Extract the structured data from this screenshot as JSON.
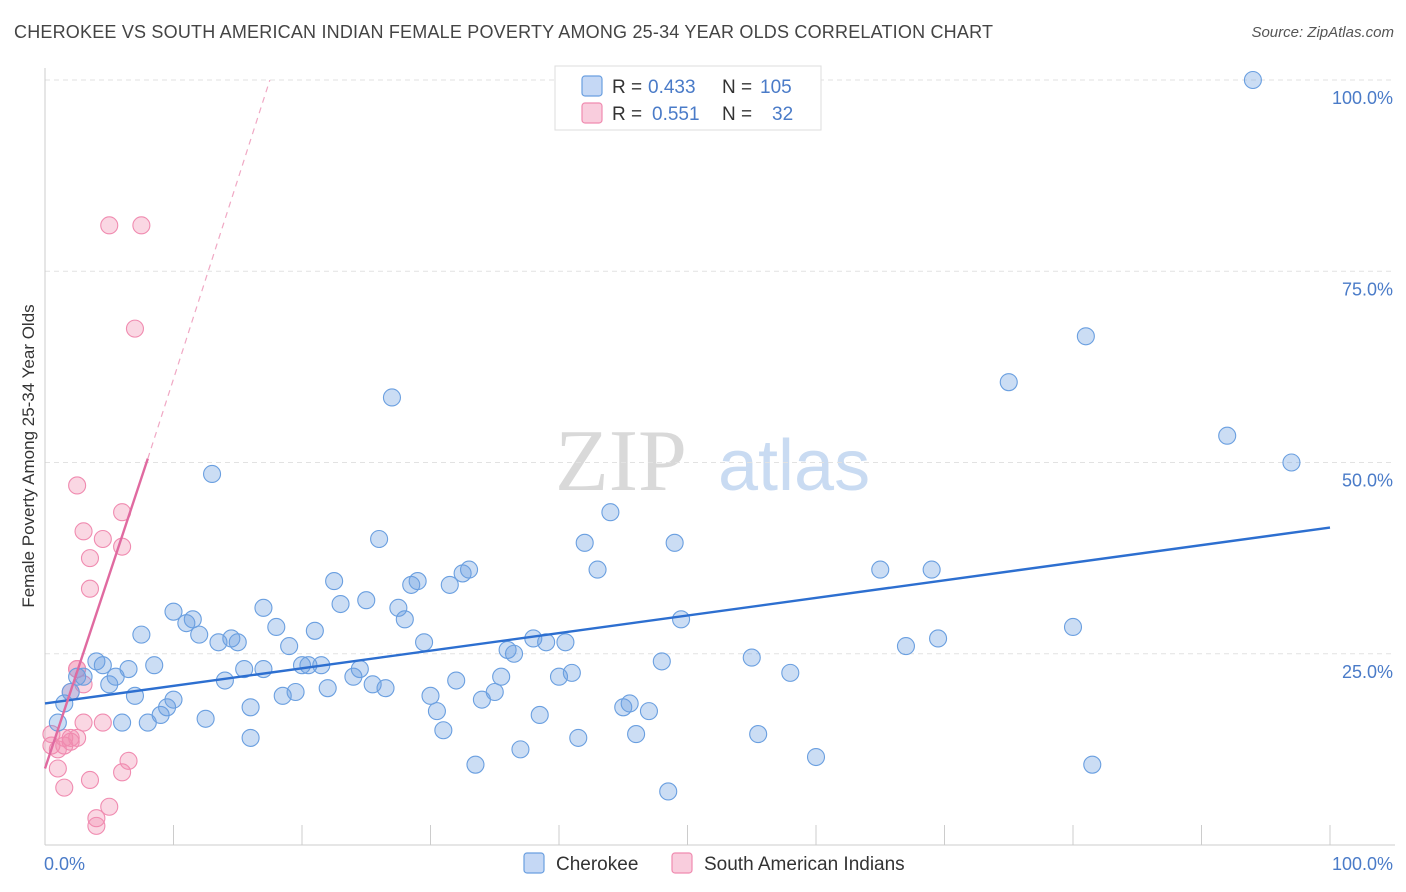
{
  "title": "CHEROKEE VS SOUTH AMERICAN INDIAN FEMALE POVERTY AMONG 25-34 YEAR OLDS CORRELATION CHART",
  "source": "Source: ZipAtlas.com",
  "watermark": {
    "zip": "ZIP",
    "atlas": "atlas"
  },
  "colors": {
    "cherokee": "#6a9fe0",
    "cherokee_line": "#2d6fd0",
    "sa": "#f08bb0",
    "sa_line": "#e06aa0",
    "label": "#4a7bc8"
  },
  "chart_data": {
    "type": "scatter",
    "title": "CHEROKEE VS SOUTH AMERICAN INDIAN FEMALE POVERTY AMONG 25-34 YEAR OLDS CORRELATION CHART",
    "xlabel": "",
    "ylabel": "Female Poverty Among 25-34 Year Olds",
    "xlim": [
      0,
      100
    ],
    "ylim": [
      0,
      100
    ],
    "x_tick_labels": [
      "0.0%",
      "100.0%"
    ],
    "y_ticks": [
      25,
      50,
      75,
      100
    ],
    "y_tick_labels": [
      "25.0%",
      "50.0%",
      "75.0%",
      "100.0%"
    ],
    "legend_stats": [
      {
        "r_label": "R =",
        "r": "0.433",
        "n_label": "N =",
        "n": "105"
      },
      {
        "r_label": "R =",
        "r": "0.551",
        "n_label": "N =",
        "n": "32"
      }
    ],
    "series": [
      {
        "name": "Cherokee",
        "trend": {
          "x0": 0,
          "y0": 18.5,
          "x1": 100,
          "y1": 41.5
        },
        "points": [
          [
            1,
            16
          ],
          [
            1.5,
            18.5
          ],
          [
            2,
            20
          ],
          [
            2.5,
            22
          ],
          [
            3,
            22
          ],
          [
            4,
            24
          ],
          [
            4.5,
            23.5
          ],
          [
            5,
            21
          ],
          [
            5.5,
            22
          ],
          [
            6,
            16
          ],
          [
            6.5,
            23
          ],
          [
            7,
            19.5
          ],
          [
            7.5,
            27.5
          ],
          [
            8,
            16
          ],
          [
            8.5,
            23.5
          ],
          [
            9,
            17
          ],
          [
            9.5,
            18
          ],
          [
            10,
            19
          ],
          [
            10,
            30.5
          ],
          [
            11,
            29
          ],
          [
            11.5,
            29.5
          ],
          [
            12,
            27.5
          ],
          [
            12.5,
            16.5
          ],
          [
            13,
            48.5
          ],
          [
            13.5,
            26.5
          ],
          [
            14,
            21.5
          ],
          [
            14.5,
            27
          ],
          [
            15,
            26.5
          ],
          [
            15.5,
            23
          ],
          [
            16,
            18
          ],
          [
            16,
            14
          ],
          [
            17,
            23
          ],
          [
            17,
            31
          ],
          [
            18,
            28.5
          ],
          [
            18.5,
            19.5
          ],
          [
            19,
            26
          ],
          [
            19.5,
            20
          ],
          [
            20,
            23.5
          ],
          [
            20.5,
            23.5
          ],
          [
            21,
            28
          ],
          [
            21.5,
            23.5
          ],
          [
            22,
            20.5
          ],
          [
            22.5,
            34.5
          ],
          [
            23,
            31.5
          ],
          [
            24,
            22
          ],
          [
            24.5,
            23
          ],
          [
            25,
            32
          ],
          [
            25.5,
            21
          ],
          [
            26,
            40
          ],
          [
            26.5,
            20.5
          ],
          [
            27,
            58.5
          ],
          [
            27.5,
            31
          ],
          [
            28,
            29.5
          ],
          [
            28.5,
            34
          ],
          [
            29,
            34.5
          ],
          [
            29.5,
            26.5
          ],
          [
            30,
            19.5
          ],
          [
            30.5,
            17.5
          ],
          [
            31,
            15
          ],
          [
            31.5,
            34
          ],
          [
            32,
            21.5
          ],
          [
            32.5,
            35.5
          ],
          [
            33,
            36
          ],
          [
            33.5,
            10.5
          ],
          [
            34,
            19
          ],
          [
            35,
            20
          ],
          [
            35.5,
            22
          ],
          [
            36,
            25.5
          ],
          [
            36.5,
            25
          ],
          [
            37,
            12.5
          ],
          [
            38,
            27
          ],
          [
            38.5,
            17
          ],
          [
            39,
            26.5
          ],
          [
            40,
            22
          ],
          [
            40.5,
            26.5
          ],
          [
            41,
            22.5
          ],
          [
            41.5,
            14
          ],
          [
            42,
            39.5
          ],
          [
            43,
            36
          ],
          [
            44,
            43.5
          ],
          [
            45,
            18
          ],
          [
            45.5,
            18.5
          ],
          [
            46,
            14.5
          ],
          [
            47,
            17.5
          ],
          [
            48,
            24
          ],
          [
            48.5,
            7
          ],
          [
            49,
            39.5
          ],
          [
            49.5,
            29.5
          ],
          [
            55,
            24.5
          ],
          [
            55.5,
            14.5
          ],
          [
            58,
            22.5
          ],
          [
            60,
            11.5
          ],
          [
            65,
            36
          ],
          [
            67,
            26
          ],
          [
            69,
            36
          ],
          [
            69.5,
            27
          ],
          [
            75,
            60.5
          ],
          [
            80,
            28.5
          ],
          [
            81,
            66.5
          ],
          [
            81.5,
            10.5
          ],
          [
            92,
            53.5
          ],
          [
            94,
            100
          ],
          [
            97,
            50
          ]
        ]
      },
      {
        "name": "South American Indians",
        "trend": {
          "x0": 0,
          "y0": 10,
          "x1": 8,
          "y1": 50.5
        },
        "trend_dashed": {
          "x0": 8,
          "y0": 50.5,
          "x1": 17.5,
          "y1": 100
        },
        "points": [
          [
            0.5,
            13
          ],
          [
            0.5,
            14.5
          ],
          [
            1,
            12.5
          ],
          [
            1,
            10
          ],
          [
            1.5,
            7.5
          ],
          [
            1.5,
            13
          ],
          [
            1.5,
            14
          ],
          [
            2,
            20
          ],
          [
            2,
            14
          ],
          [
            2,
            13.5
          ],
          [
            2.5,
            23
          ],
          [
            2.5,
            14
          ],
          [
            2.5,
            23
          ],
          [
            2.5,
            47
          ],
          [
            3,
            16
          ],
          [
            3,
            41
          ],
          [
            3,
            21
          ],
          [
            3.5,
            33.5
          ],
          [
            3.5,
            37.5
          ],
          [
            3.5,
            8.5
          ],
          [
            4,
            3.5
          ],
          [
            4,
            2.5
          ],
          [
            4.5,
            16
          ],
          [
            4.5,
            40
          ],
          [
            5,
            5
          ],
          [
            5,
            81
          ],
          [
            6,
            9.5
          ],
          [
            6,
            39
          ],
          [
            6,
            43.5
          ],
          [
            6.5,
            11
          ],
          [
            7,
            67.5
          ],
          [
            7.5,
            81
          ]
        ]
      }
    ],
    "legend": [
      "Cherokee",
      "South American Indians"
    ]
  }
}
